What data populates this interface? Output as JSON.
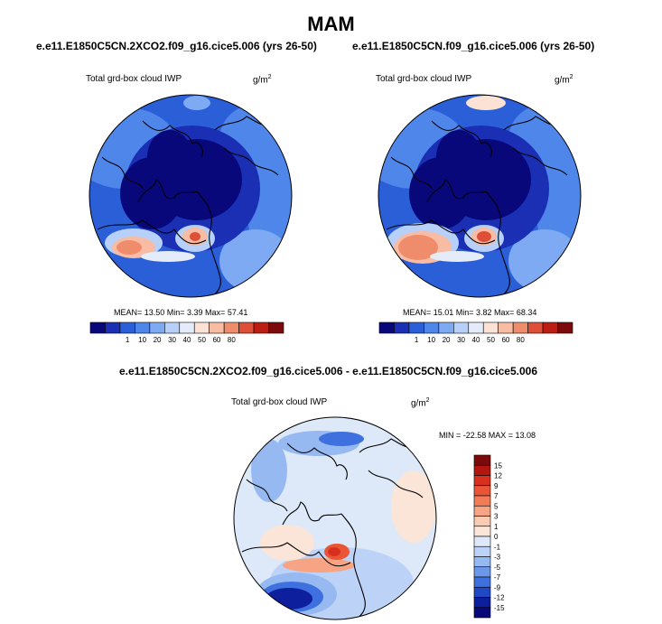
{
  "main_title": "MAM",
  "panels": [
    {
      "title": "e.e11.E1850C5CN.2XCO2.f09_g16.cice5.006 (yrs 26-50)",
      "variable": "Total grd-box cloud IWP",
      "units": "g/m",
      "units_exp": "2",
      "stats": "MEAN=  13.50  Min=   3.39  Max=  57.41"
    },
    {
      "title": "e.e11.E1850C5CN.f09_g16.cice5.006 (yrs 26-50)",
      "variable": "Total grd-box cloud IWP",
      "units": "g/m",
      "units_exp": "2",
      "stats": "MEAN=  15.01  Min=   3.82  Max=  68.34"
    },
    {
      "title": "e.e11.E1850C5CN.2XCO2.f09_g16.cice5.006 - e.e11.E1850C5CN.f09_g16.cice5.006",
      "variable": "Total grd-box cloud IWP",
      "units": "g/m",
      "units_exp": "2",
      "stats": "MIN = -22.58  MAX =  13.08"
    }
  ],
  "chart_data": [
    {
      "type": "heatmap",
      "projection": "north-polar-stereographic",
      "title": "e.e11.E1850C5CN.2XCO2.f09_g16.cice5.006 (yrs 26-50)",
      "variable": "Total grd-box cloud IWP",
      "units": "g/m2",
      "mean": 13.5,
      "min": 3.39,
      "max": 57.41,
      "colorbar_levels": [
        1,
        10,
        20,
        30,
        40,
        50,
        60,
        80
      ],
      "colorbar_colors": [
        "#08087a",
        "#1a2fb4",
        "#2a5fd8",
        "#4f86ea",
        "#7ea9f3",
        "#b6d0fa",
        "#e3ecf8",
        "#fbe2d4",
        "#f7bca3",
        "#ef8c6c",
        "#dd4f37",
        "#bd1e13",
        "#7d0a0a"
      ]
    },
    {
      "type": "heatmap",
      "projection": "north-polar-stereographic",
      "title": "e.e11.E1850C5CN.f09_g16.cice5.006 (yrs 26-50)",
      "variable": "Total grd-box cloud IWP",
      "units": "g/m2",
      "mean": 15.01,
      "min": 3.82,
      "max": 68.34,
      "colorbar_levels": [
        1,
        10,
        20,
        30,
        40,
        50,
        60,
        80
      ],
      "colorbar_colors": [
        "#08087a",
        "#1a2fb4",
        "#2a5fd8",
        "#4f86ea",
        "#7ea9f3",
        "#b6d0fa",
        "#e3ecf8",
        "#fbe2d4",
        "#f7bca3",
        "#ef8c6c",
        "#dd4f37",
        "#bd1e13",
        "#7d0a0a"
      ]
    },
    {
      "type": "heatmap",
      "projection": "north-polar-stereographic",
      "title": "e.e11.E1850C5CN.2XCO2.f09_g16.cice5.006 - e.e11.E1850C5CN.f09_g16.cice5.006",
      "variable": "Total grd-box cloud IWP",
      "units": "g/m2",
      "min": -22.58,
      "max": 13.08,
      "colorbar_levels": [
        15,
        12,
        9,
        7,
        5,
        3,
        1,
        0,
        -1,
        -3,
        -5,
        -7,
        -9,
        -12,
        -15
      ],
      "colorbar_colors": [
        "#7d0a0a",
        "#b3160f",
        "#d8301e",
        "#ea5535",
        "#f27c58",
        "#f6a483",
        "#f9cbb2",
        "#fbe5d8",
        "#dde9f8",
        "#bcd3f7",
        "#96b9f2",
        "#6b98ea",
        "#3f70df",
        "#2048c4",
        "#0d1f9c",
        "#08087a"
      ]
    }
  ]
}
